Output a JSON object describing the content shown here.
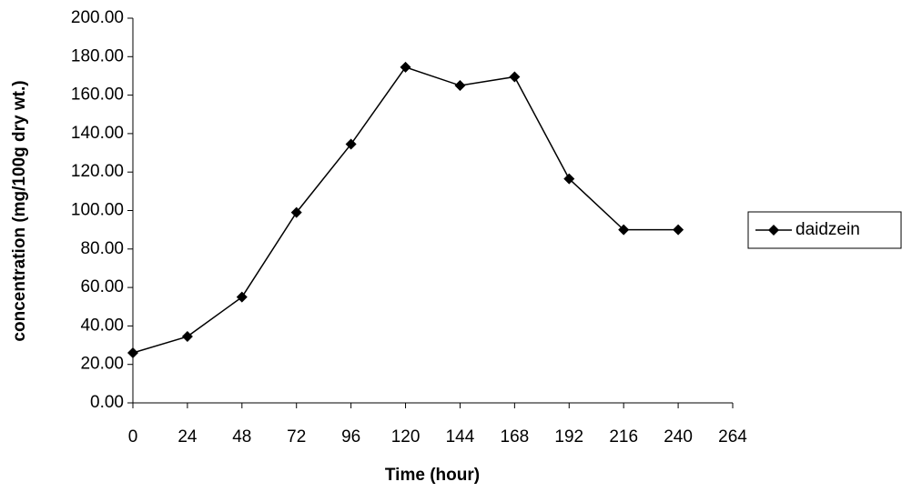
{
  "chart_data": {
    "type": "line",
    "x_label": "Time (hour)",
    "y_label": "concentration (mg/100g dry wt.)",
    "x": [
      0,
      24,
      48,
      72,
      96,
      120,
      144,
      168,
      192,
      216,
      240
    ],
    "series": [
      {
        "name": "daidzein",
        "color": "#000000",
        "values": [
          26,
          34.5,
          55,
          99,
          134.5,
          174.5,
          165,
          169.5,
          116.5,
          90,
          90
        ]
      }
    ],
    "xlim": [
      0,
      264
    ],
    "xticks": [
      0,
      24,
      48,
      72,
      96,
      120,
      144,
      168,
      192,
      216,
      240,
      264
    ],
    "ylim": [
      0,
      200
    ],
    "yticks": [
      {
        "value": 0,
        "label": "0.00"
      },
      {
        "value": 20,
        "label": "20.00"
      },
      {
        "value": 40,
        "label": "40.00"
      },
      {
        "value": 60,
        "label": "60.00"
      },
      {
        "value": 80,
        "label": "80.00"
      },
      {
        "value": 100,
        "label": "100.00"
      },
      {
        "value": 120,
        "label": "120.00"
      },
      {
        "value": 140,
        "label": "140.00"
      },
      {
        "value": 160,
        "label": "160.00"
      },
      {
        "value": 180,
        "label": "180.00"
      },
      {
        "value": 200,
        "label": "200.00"
      }
    ],
    "grid": false,
    "legend": "right"
  }
}
